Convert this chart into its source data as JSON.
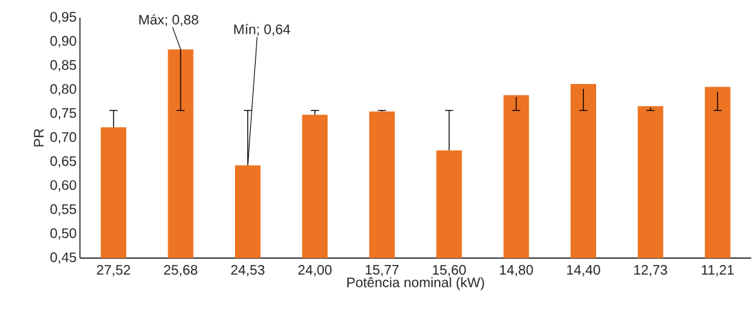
{
  "chart_data": {
    "type": "bar",
    "xlabel": "Potência nominal (kW)",
    "ylabel": "PR",
    "categories": [
      "27,52",
      "25,68",
      "24,53",
      "24,00",
      "15,77",
      "15,60",
      "14,80",
      "14,40",
      "12,73",
      "11,21"
    ],
    "values": [
      0.722,
      0.884,
      0.643,
      0.748,
      0.755,
      0.674,
      0.789,
      0.812,
      0.766,
      0.806
    ],
    "errors": [
      [
        0.722,
        0.757
      ],
      [
        0.757,
        0.884
      ],
      [
        0.643,
        0.757
      ],
      [
        0.748,
        0.757
      ],
      [
        0.755,
        0.757
      ],
      [
        0.674,
        0.757
      ],
      [
        0.757,
        0.785
      ],
      [
        0.757,
        0.802
      ],
      [
        0.757,
        0.763
      ],
      [
        0.757,
        0.796
      ]
    ],
    "color": "#ed7423",
    "ylim": [
      0.45,
      0.95
    ],
    "yticks": [
      {
        "value": 0.45,
        "label": "0,45"
      },
      {
        "value": 0.5,
        "label": "0,50"
      },
      {
        "value": 0.55,
        "label": "0,55"
      },
      {
        "value": 0.6,
        "label": "0,60"
      },
      {
        "value": 0.65,
        "label": "0,65"
      },
      {
        "value": 0.7,
        "label": "0,70"
      },
      {
        "value": 0.75,
        "label": "0,75"
      },
      {
        "value": 0.8,
        "label": "0,80"
      },
      {
        "value": 0.85,
        "label": "0,85"
      },
      {
        "value": 0.9,
        "label": "0,90"
      },
      {
        "value": 0.95,
        "label": "0,95"
      }
    ],
    "annotations": [
      {
        "text": "Máx; 0,88",
        "x": "25,68",
        "y": 0.884
      },
      {
        "text": "Mín; 0,64",
        "x": "24,53",
        "y": 0.643
      }
    ],
    "grid": false,
    "legend": false
  }
}
